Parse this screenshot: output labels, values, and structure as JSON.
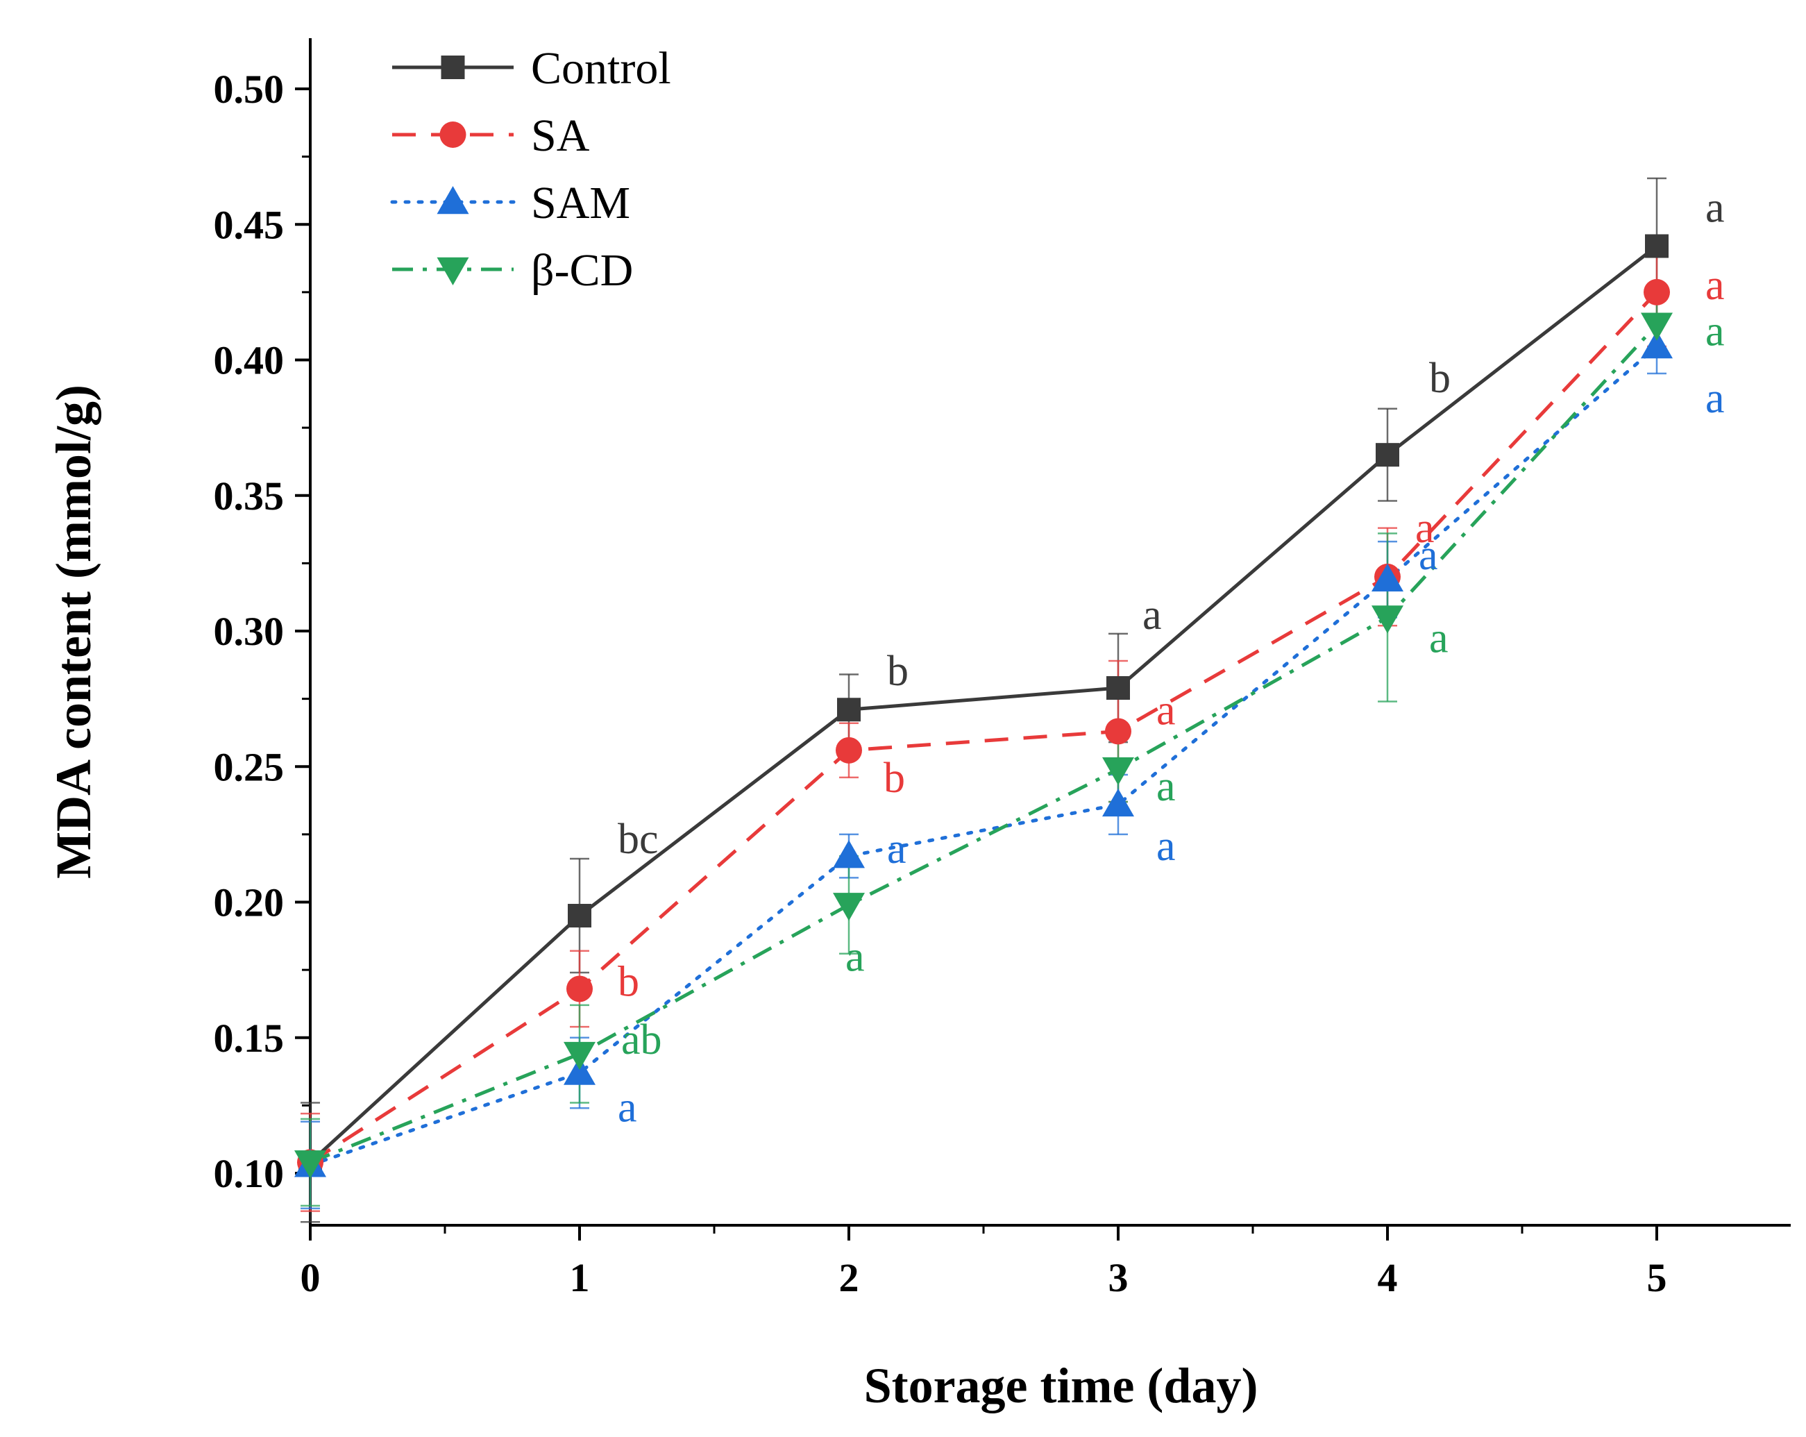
{
  "chart_data": {
    "type": "line",
    "title": "",
    "xlabel": "Storage time (day)",
    "ylabel": "MDA content (mmol/g)",
    "xlim": [
      0,
      5.5
    ],
    "ylim": [
      0.08,
      0.52
    ],
    "x_ticks": [
      0,
      1,
      2,
      3,
      4,
      5
    ],
    "x_tick_labels": [
      "0",
      "1",
      "2",
      "3",
      "4",
      "5"
    ],
    "y_ticks": [
      0.1,
      0.15,
      0.2,
      0.25,
      0.3,
      0.35,
      0.4,
      0.45,
      0.5
    ],
    "y_tick_labels": [
      "0.10",
      "0.15",
      "0.20",
      "0.25",
      "0.30",
      "0.35",
      "0.40",
      "0.45",
      "0.50"
    ],
    "grid": false,
    "legend_position": "top-left",
    "x": [
      0,
      1,
      2,
      3,
      4,
      5
    ],
    "series": [
      {
        "name": "Control",
        "color": "#3a3a3a",
        "dash": "solid",
        "marker": "square",
        "values": [
          0.104,
          0.195,
          0.271,
          0.279,
          0.365,
          0.442
        ],
        "errors": [
          0.022,
          0.021,
          0.013,
          0.02,
          0.017,
          0.025
        ],
        "letters": [
          "",
          "bc",
          "b",
          "a",
          "b",
          "a"
        ]
      },
      {
        "name": "SA",
        "color": "#e83a3a",
        "dash": "dash",
        "marker": "circle",
        "values": [
          0.104,
          0.168,
          0.256,
          0.263,
          0.32,
          0.425
        ],
        "errors": [
          0.018,
          0.014,
          0.01,
          0.026,
          0.018,
          0.02
        ],
        "letters": [
          "",
          "b",
          "b",
          "a",
          "a",
          "a"
        ]
      },
      {
        "name": "SAM",
        "color": "#1f6fd8",
        "dash": "dot",
        "marker": "triangle-up",
        "values": [
          0.103,
          0.137,
          0.217,
          0.236,
          0.319,
          0.405
        ],
        "errors": [
          0.016,
          0.013,
          0.008,
          0.011,
          0.014,
          0.01
        ],
        "letters": [
          "",
          "a",
          "a",
          "a",
          "a",
          "a"
        ]
      },
      {
        "name": "β-CD",
        "color": "#27a35a",
        "dash": "dashdot",
        "marker": "triangle-down",
        "values": [
          0.104,
          0.144,
          0.199,
          0.249,
          0.305,
          0.413
        ],
        "errors": [
          0.016,
          0.018,
          0.018,
          0.012,
          0.031,
          0.012
        ],
        "letters": [
          "",
          "ab",
          "a",
          "a",
          "a",
          "a"
        ]
      }
    ]
  }
}
